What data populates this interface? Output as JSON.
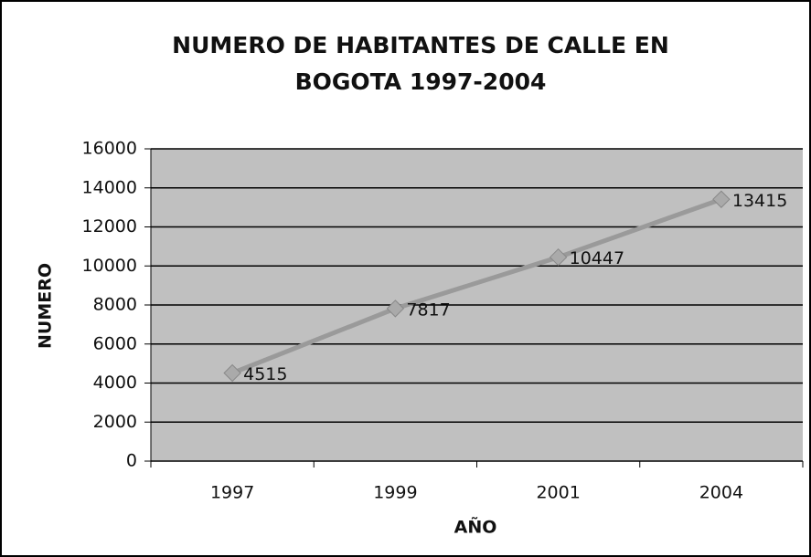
{
  "chart_data": {
    "type": "line",
    "title": "NUMERO DE HABITANTES DE CALLE EN BOGOTA 1997-2004",
    "x_label": "AÑO",
    "y_label": "NUMERO",
    "categories": [
      "1997",
      "1999",
      "2001",
      "2004"
    ],
    "values": [
      4515,
      7817,
      10447,
      13415
    ],
    "color": "#9a9a9a",
    "ylim": [
      0,
      16000
    ],
    "yticks": [
      0,
      2000,
      4000,
      6000,
      8000,
      10000,
      12000,
      14000,
      16000
    ],
    "grid": true
  }
}
